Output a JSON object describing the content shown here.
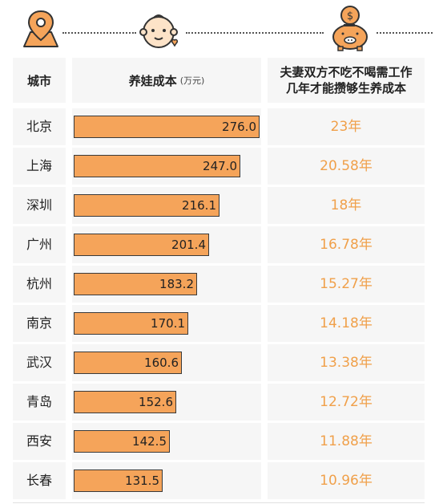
{
  "header": {
    "city": "城市",
    "cost": "养娃成本",
    "cost_unit": "(万元)",
    "years_line1": "夫妻双方不吃不喝需工作",
    "years_line2": "几年才能攒够生养成本"
  },
  "icons": [
    "location-pin-icon",
    "baby-face-icon",
    "piggy-bank-icon"
  ],
  "colors": {
    "bar": "#f5a45a",
    "years_text": "#f0a04a",
    "row_bg": "#f6f6f6"
  },
  "chart_data": {
    "type": "bar",
    "orientation": "horizontal",
    "categories": [
      "北京",
      "上海",
      "深圳",
      "广州",
      "杭州",
      "南京",
      "武汉",
      "青岛",
      "西安",
      "长春"
    ],
    "values": [
      276.0,
      247.0,
      216.1,
      201.4,
      183.2,
      170.1,
      160.6,
      152.6,
      142.5,
      131.5
    ],
    "value_labels": [
      "276.0",
      "247.0",
      "216.1",
      "201.4",
      "183.2",
      "170.1",
      "160.6",
      "152.6",
      "142.5",
      "131.5"
    ],
    "years": [
      "23年",
      "20.58年",
      "18年",
      "16.78年",
      "15.27年",
      "14.18年",
      "13.38年",
      "12.72年",
      "11.88年",
      "10.96年"
    ],
    "xlim": [
      0,
      276.0
    ]
  }
}
